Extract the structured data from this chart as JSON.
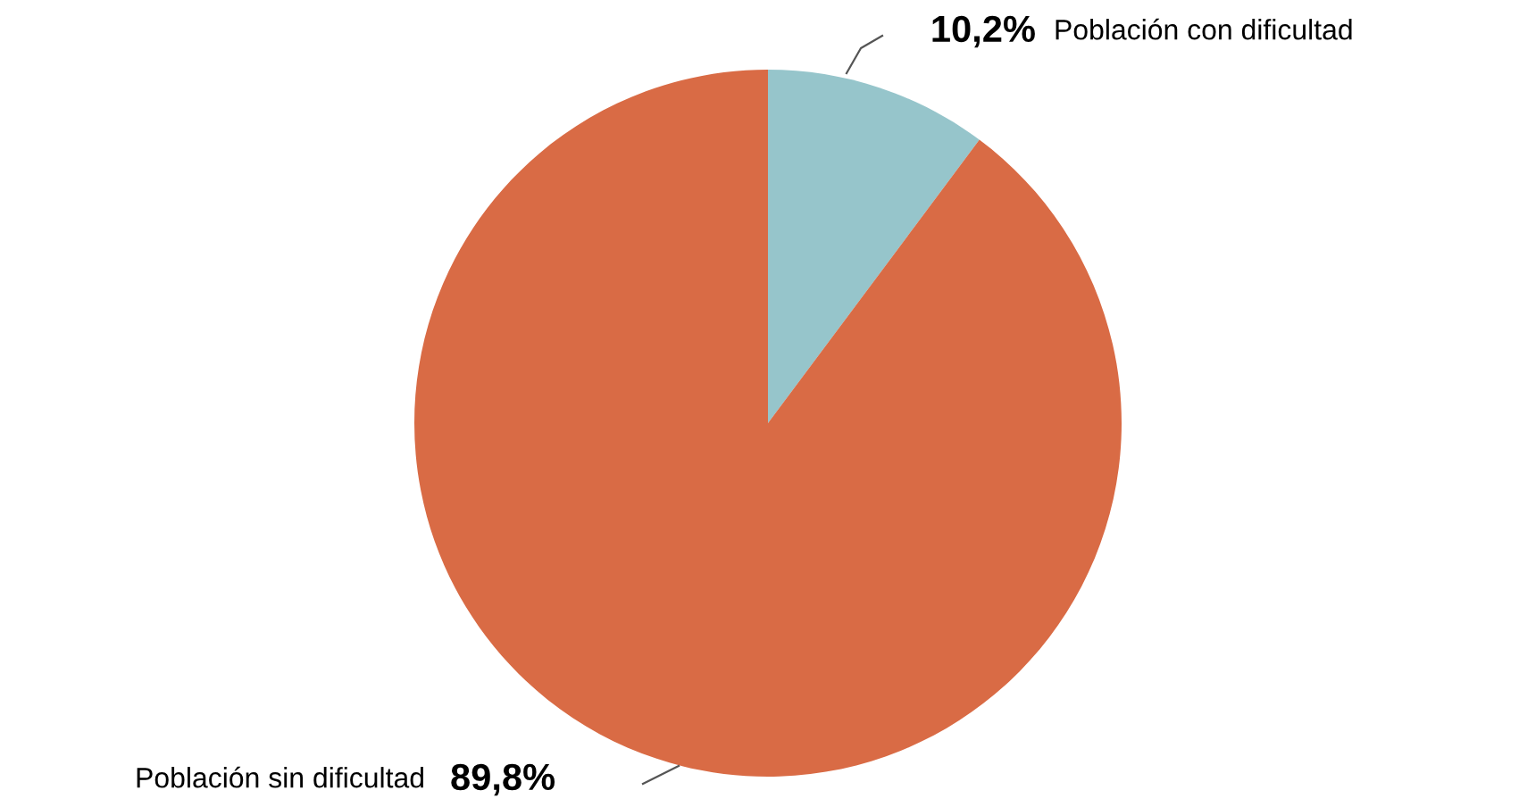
{
  "chart_data": {
    "type": "pie",
    "categories": [
      "Población con dificultad",
      "Población sin dificultad"
    ],
    "values": [
      10.2,
      89.8
    ],
    "value_labels": [
      "10,2%",
      "89,8%"
    ],
    "colors": [
      "#96c5cb",
      "#d96b45"
    ]
  }
}
